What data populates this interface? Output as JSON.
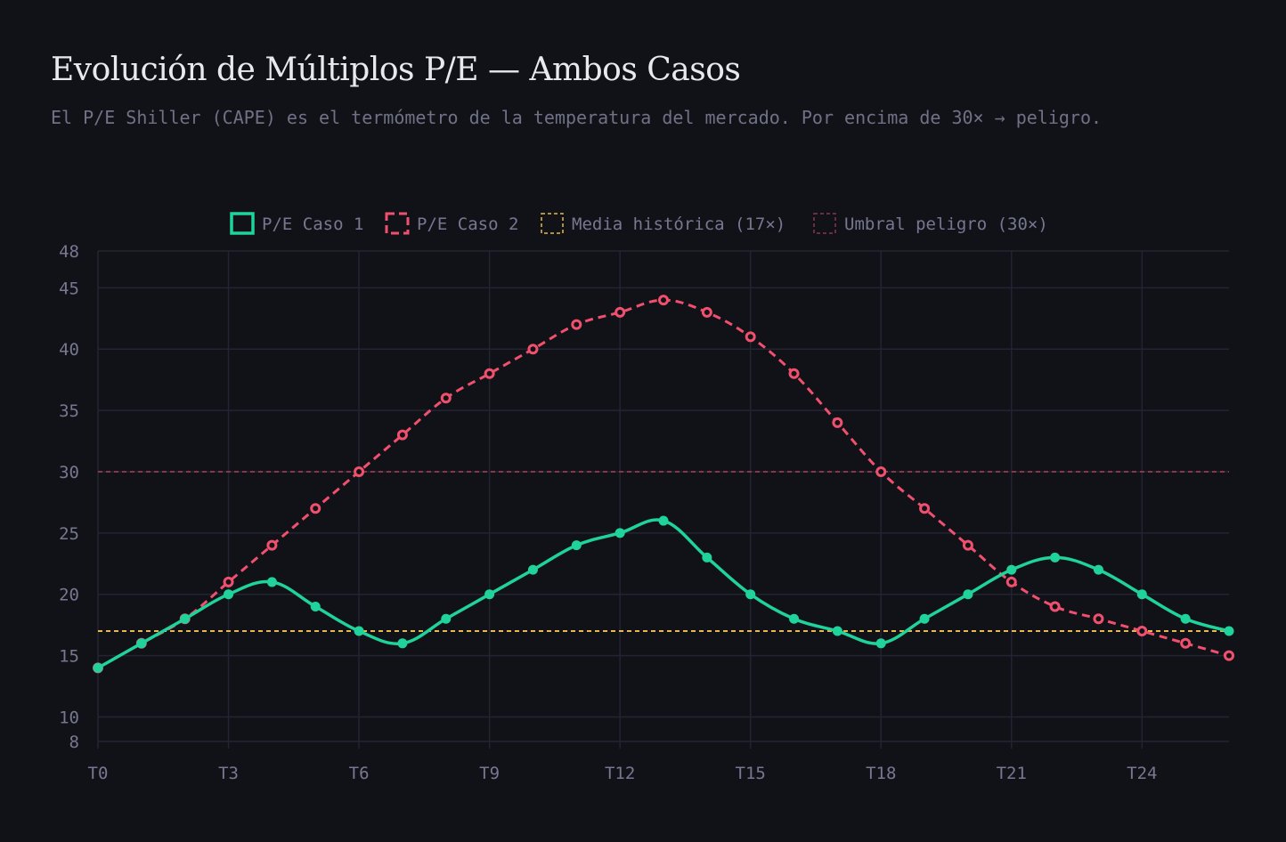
{
  "title": "Evolución de Múltiplos P/E — Ambos Casos",
  "subtitle": "El P/E Shiller (CAPE) es el termómetro de la temperatura del mercado. Por encima de 30× → peligro.",
  "colors": {
    "background": "#111217",
    "grid": "#232433",
    "text": "#767891",
    "case1": "#1fd39a",
    "case2": "#f0506e",
    "mean": "#e6b94a",
    "danger": "#8a3548"
  },
  "chart_data": {
    "type": "line",
    "x": [
      "T0",
      "T1",
      "T2",
      "T3",
      "T4",
      "T5",
      "T6",
      "T7",
      "T8",
      "T9",
      "T10",
      "T11",
      "T12",
      "T13",
      "T14",
      "T15",
      "T16",
      "T17",
      "T18",
      "T19",
      "T20",
      "T21",
      "T22",
      "T23",
      "T24",
      "T25",
      "T26"
    ],
    "x_tick_labels": [
      "T0",
      "T3",
      "T6",
      "T9",
      "T12",
      "T15",
      "T18",
      "T21",
      "T24"
    ],
    "y_tick_labels": [
      "8",
      "10",
      "15",
      "20",
      "25",
      "30",
      "35",
      "40",
      "45",
      "48"
    ],
    "ylim": [
      8,
      48
    ],
    "grid": true,
    "legend": "top-center",
    "series": [
      {
        "name": "P/E Caso 1",
        "style": "solid",
        "values": [
          14,
          16,
          18,
          20,
          21,
          19,
          17,
          16,
          18,
          20,
          22,
          24,
          25,
          26,
          23,
          20,
          18,
          17,
          16,
          18,
          20,
          22,
          23,
          22,
          20,
          18,
          17
        ]
      },
      {
        "name": "P/E Caso 2",
        "style": "dashed",
        "values": [
          14,
          16,
          18,
          21,
          24,
          27,
          30,
          33,
          36,
          38,
          40,
          42,
          43,
          44,
          43,
          41,
          38,
          34,
          30,
          27,
          24,
          21,
          19,
          18,
          17,
          16,
          15
        ]
      },
      {
        "name": "Media histórica (17×)",
        "style": "dotted-reference",
        "value": 17
      },
      {
        "name": "Umbral peligro (30×)",
        "style": "dotted-reference",
        "value": 30
      }
    ]
  }
}
